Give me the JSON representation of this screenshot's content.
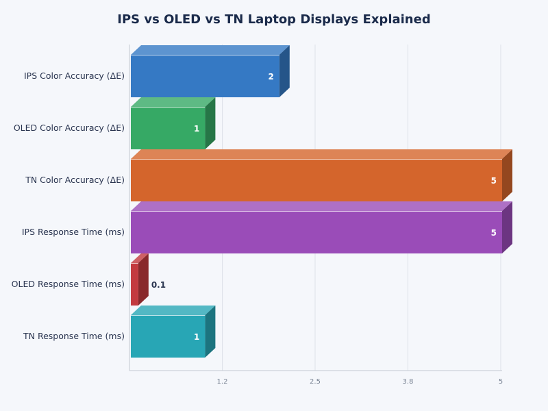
{
  "chart_data": {
    "type": "bar",
    "orientation": "horizontal",
    "style": "3d",
    "title": "IPS vs OLED vs TN Laptop Displays Explained",
    "categories": [
      "IPS Color Accuracy (ΔE)",
      "OLED Color Accuracy (ΔE)",
      "TN Color Accuracy (ΔE)",
      "IPS Response Time (ms)",
      "OLED Response Time (ms)",
      "TN Response Time (ms)"
    ],
    "values": [
      2,
      1,
      5,
      5,
      0.1,
      1
    ],
    "data_labels": [
      "2",
      "1",
      "5",
      "5",
      "0.1",
      "1"
    ],
    "colors": [
      "#3579c4",
      "#36a965",
      "#d4652c",
      "#9a4cb8",
      "#c33a3f",
      "#28a6b5"
    ],
    "xlim": [
      0,
      5
    ],
    "x_ticks": [
      1.25,
      2.5,
      3.75,
      5
    ],
    "x_tick_labels": [
      "1.2",
      "2.5",
      "3.8",
      "5"
    ],
    "grid": true,
    "xlabel": "",
    "ylabel": ""
  }
}
